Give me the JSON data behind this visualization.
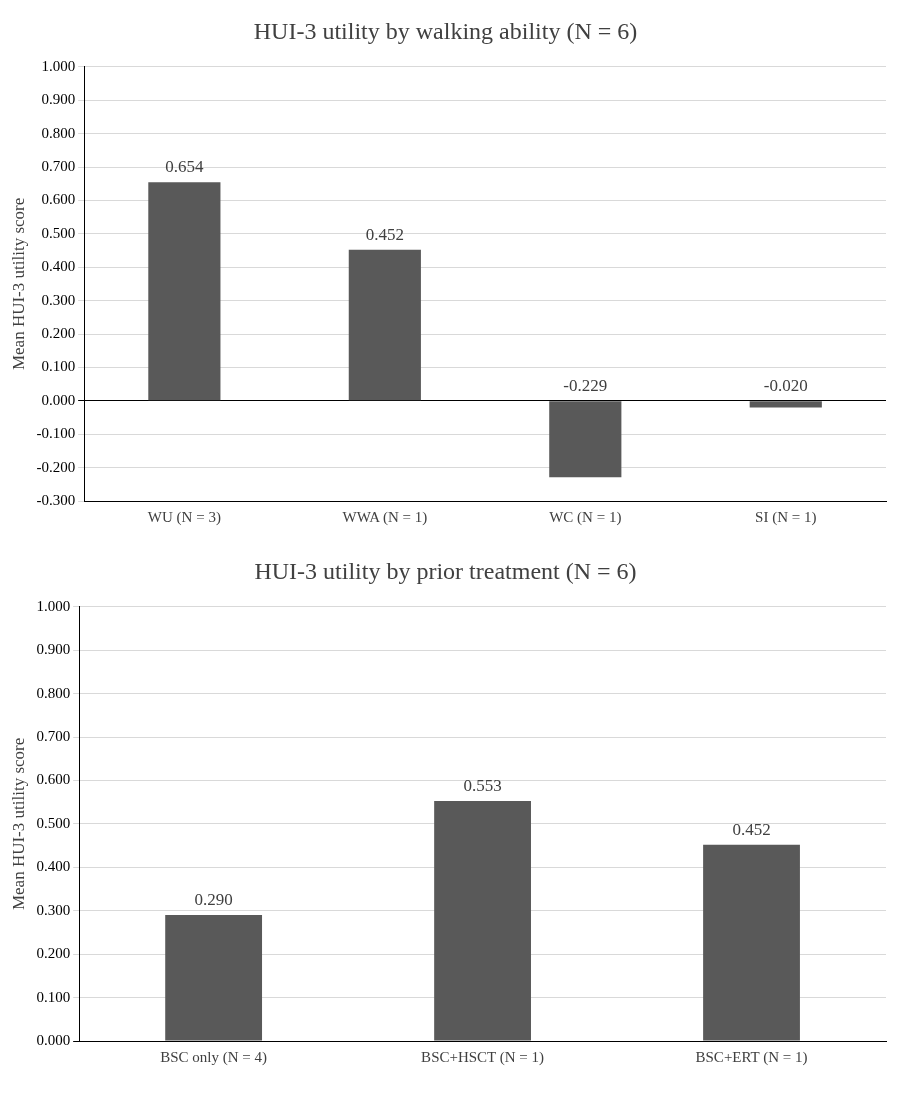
{
  "chart_data": [
    {
      "type": "bar",
      "title": "HUI-3 utility by walking ability (N = 6)",
      "ylabel": "Mean HUI-3 utility score",
      "categories": [
        "WU (N = 3)",
        "WWA (N = 1)",
        "WC (N = 1)",
        "SI (N = 1)"
      ],
      "values": [
        0.654,
        0.452,
        -0.229,
        -0.02
      ],
      "value_labels": [
        "0.654",
        "0.452",
        "-0.229",
        "-0.020"
      ],
      "color": "#595959",
      "ylim": [
        -0.3,
        1
      ],
      "yticks": [
        {
          "value": -0.3,
          "label": "-0.300"
        },
        {
          "value": -0.2,
          "label": "-0.200"
        },
        {
          "value": -0.1,
          "label": "-0.100"
        },
        {
          "value": 0,
          "label": "0.000"
        },
        {
          "value": 0.1,
          "label": "0.100"
        },
        {
          "value": 0.2,
          "label": "0.200"
        },
        {
          "value": 0.3,
          "label": "0.300"
        },
        {
          "value": 0.4,
          "label": "0.400"
        },
        {
          "value": 0.5,
          "label": "0.500"
        },
        {
          "value": 0.6,
          "label": "0.600"
        },
        {
          "value": 0.7,
          "label": "0.700"
        },
        {
          "value": 0.8,
          "label": "0.800"
        },
        {
          "value": 0.9,
          "label": "0.900"
        },
        {
          "value": 1,
          "label": "1.000"
        }
      ],
      "grid": "y"
    },
    {
      "type": "bar",
      "title": "HUI-3 utility by prior treatment (N = 6)",
      "ylabel": "Mean HUI-3 utility score",
      "categories": [
        "BSC only (N = 4)",
        "BSC+HSCT (N = 1)",
        "BSC+ERT (N = 1)"
      ],
      "values": [
        0.29,
        0.553,
        0.452
      ],
      "value_labels": [
        "0.290",
        "0.553",
        "0.452"
      ],
      "color": "#595959",
      "ylim": [
        0,
        1
      ],
      "yticks": [
        {
          "value": 0,
          "label": "0.000"
        },
        {
          "value": 0.1,
          "label": "0.100"
        },
        {
          "value": 0.2,
          "label": "0.200"
        },
        {
          "value": 0.3,
          "label": "0.300"
        },
        {
          "value": 0.4,
          "label": "0.400"
        },
        {
          "value": 0.5,
          "label": "0.500"
        },
        {
          "value": 0.6,
          "label": "0.600"
        },
        {
          "value": 0.7,
          "label": "0.700"
        },
        {
          "value": 0.8,
          "label": "0.800"
        },
        {
          "value": 0.9,
          "label": "0.900"
        },
        {
          "value": 1,
          "label": "1.000"
        }
      ],
      "grid": "y"
    }
  ]
}
